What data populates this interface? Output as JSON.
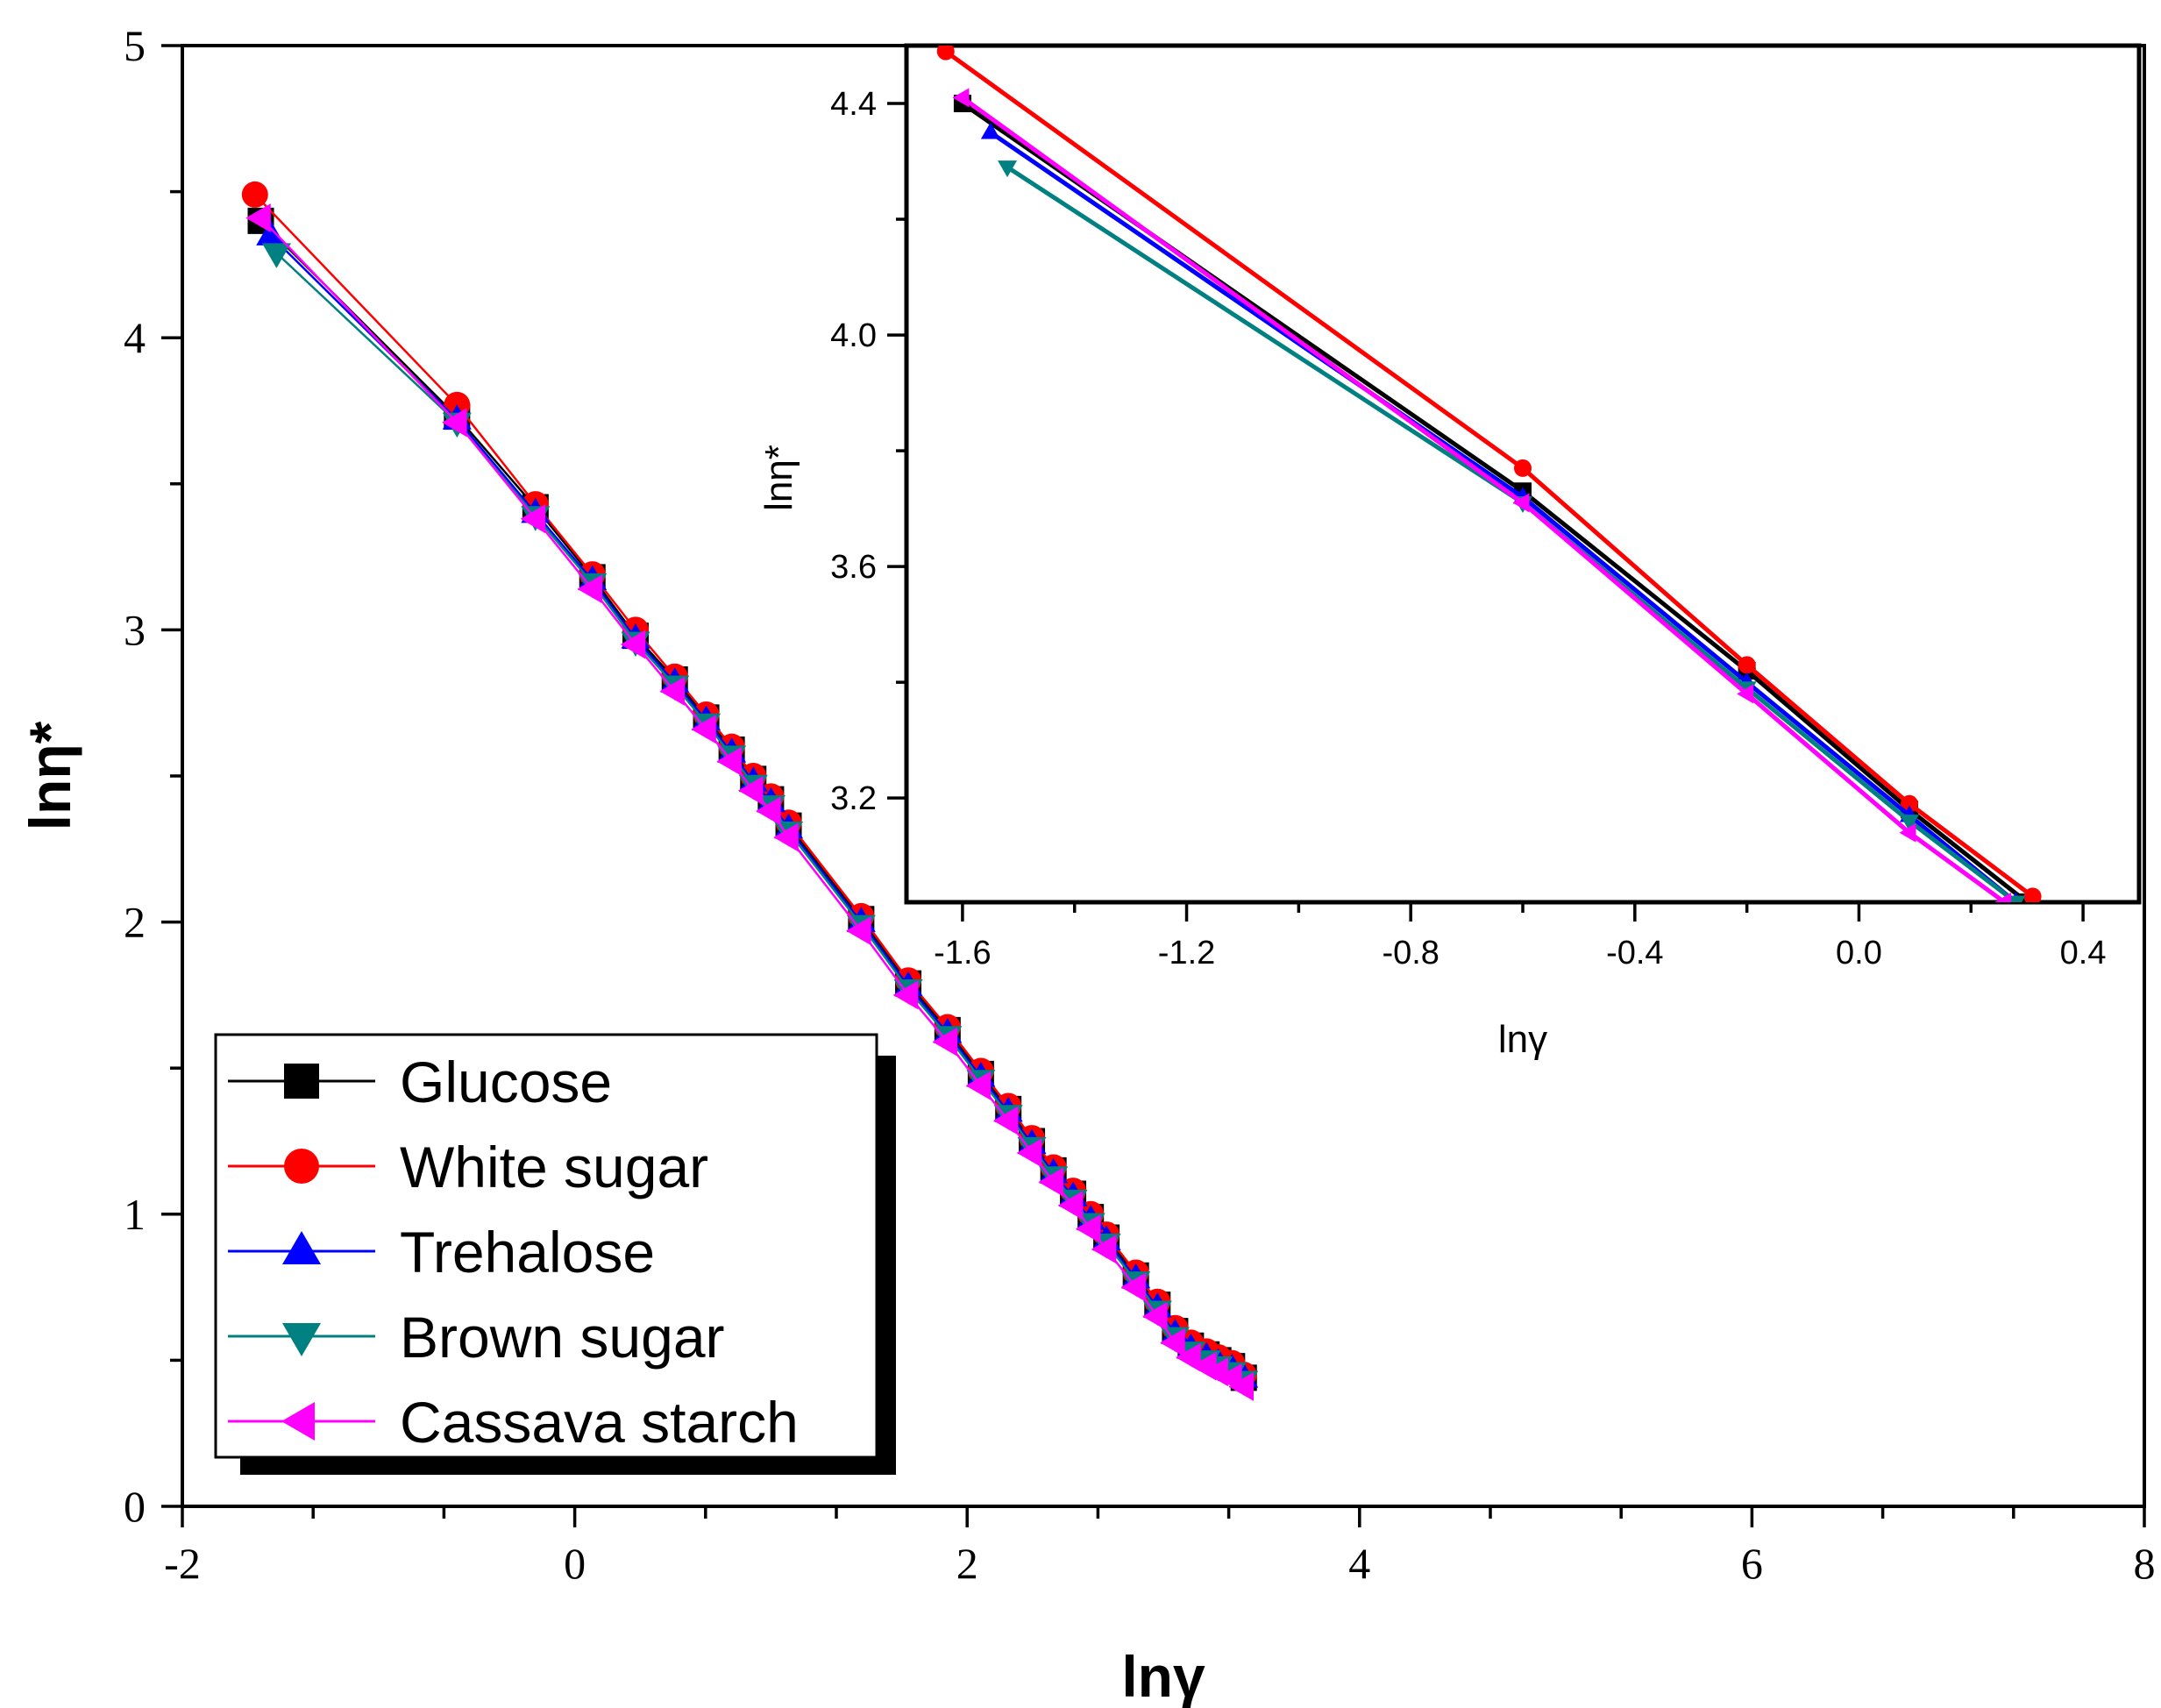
{
  "chart_data": [
    {
      "type": "line",
      "name": "main",
      "xlabel": "lnγ",
      "ylabel": "lnη*",
      "xlim": [
        -2,
        8
      ],
      "ylim": [
        0,
        5
      ],
      "xticks": [
        "-2",
        "0",
        "2",
        "4",
        "6",
        "8"
      ],
      "yticks": [
        "0",
        "1",
        "2",
        "3",
        "4",
        "5"
      ],
      "legend_position": "bottom-left",
      "series": [
        {
          "name": "Glucose",
          "color": "#000000",
          "marker": "square",
          "x": [
            -1.6,
            -0.6,
            -0.2,
            0.09,
            0.31,
            0.51,
            0.67,
            0.8,
            0.91,
            1.0,
            1.09,
            1.46,
            1.7,
            1.9,
            2.07,
            2.21,
            2.33,
            2.44,
            2.54,
            2.63,
            2.71,
            2.86,
            2.97,
            3.06,
            3.14,
            3.22,
            3.28,
            3.35,
            3.41
          ],
          "y": [
            4.4,
            3.73,
            3.42,
            3.18,
            2.98,
            2.83,
            2.7,
            2.59,
            2.49,
            2.42,
            2.33,
            2.01,
            1.79,
            1.63,
            1.48,
            1.36,
            1.25,
            1.15,
            1.07,
            0.99,
            0.92,
            0.79,
            0.69,
            0.6,
            0.55,
            0.52,
            0.5,
            0.48,
            0.44
          ]
        },
        {
          "name": "White sugar",
          "color": "#ff0000",
          "marker": "circle",
          "x": [
            -1.63,
            -0.6,
            -0.2,
            0.09,
            0.31,
            0.51,
            0.67,
            0.8,
            0.91,
            1.0,
            1.09,
            1.46,
            1.7,
            1.9,
            2.07,
            2.21,
            2.33,
            2.44,
            2.54,
            2.63,
            2.71,
            2.86,
            2.97,
            3.06,
            3.14,
            3.22,
            3.28,
            3.35,
            3.41
          ],
          "y": [
            4.49,
            3.77,
            3.43,
            3.19,
            3.0,
            2.84,
            2.71,
            2.6,
            2.5,
            2.43,
            2.34,
            2.02,
            1.8,
            1.64,
            1.49,
            1.37,
            1.26,
            1.16,
            1.08,
            1.0,
            0.93,
            0.8,
            0.7,
            0.61,
            0.56,
            0.53,
            0.51,
            0.49,
            0.45
          ]
        },
        {
          "name": "Trehalose",
          "color": "#0000ff",
          "marker": "triangle-up",
          "x": [
            -1.55,
            -0.6,
            -0.2,
            0.09,
            0.31,
            0.51,
            0.67,
            0.8,
            0.91,
            1.0,
            1.09,
            1.46,
            1.7,
            1.9,
            2.07,
            2.21,
            2.33,
            2.44,
            2.54,
            2.63,
            2.71,
            2.86,
            2.97,
            3.06,
            3.14,
            3.22,
            3.28,
            3.35,
            3.41
          ],
          "y": [
            4.35,
            3.72,
            3.4,
            3.17,
            2.97,
            2.82,
            2.69,
            2.58,
            2.48,
            2.41,
            2.32,
            2.0,
            1.78,
            1.62,
            1.47,
            1.35,
            1.24,
            1.14,
            1.06,
            0.98,
            0.91,
            0.78,
            0.68,
            0.59,
            0.54,
            0.51,
            0.49,
            0.47,
            0.44
          ]
        },
        {
          "name": "Brown sugar",
          "color": "#008080",
          "marker": "triangle-down",
          "x": [
            -1.52,
            -0.6,
            -0.2,
            0.09,
            0.31,
            0.51,
            0.67,
            0.8,
            0.91,
            1.0,
            1.09,
            1.46,
            1.7,
            1.9,
            2.07,
            2.21,
            2.33,
            2.44,
            2.54,
            2.63,
            2.71,
            2.86,
            2.97,
            3.06,
            3.14,
            3.22,
            3.28,
            3.35,
            3.41
          ],
          "y": [
            4.29,
            3.71,
            3.39,
            3.16,
            2.96,
            2.81,
            2.68,
            2.57,
            2.47,
            2.4,
            2.31,
            1.99,
            1.77,
            1.61,
            1.46,
            1.34,
            1.23,
            1.13,
            1.05,
            0.97,
            0.9,
            0.77,
            0.67,
            0.58,
            0.53,
            0.5,
            0.48,
            0.46,
            0.43
          ]
        },
        {
          "name": "Cassava starch",
          "color": "#ff00ff",
          "marker": "triangle-left",
          "x": [
            -1.6,
            -0.6,
            -0.2,
            0.09,
            0.31,
            0.51,
            0.67,
            0.8,
            0.91,
            1.0,
            1.09,
            1.46,
            1.7,
            1.9,
            2.07,
            2.21,
            2.33,
            2.44,
            2.54,
            2.63,
            2.71,
            2.86,
            2.97,
            3.06,
            3.14,
            3.22,
            3.28,
            3.35,
            3.41
          ],
          "y": [
            4.41,
            3.71,
            3.38,
            3.14,
            2.95,
            2.79,
            2.66,
            2.55,
            2.45,
            2.38,
            2.29,
            1.97,
            1.75,
            1.59,
            1.44,
            1.32,
            1.21,
            1.11,
            1.03,
            0.95,
            0.88,
            0.75,
            0.65,
            0.56,
            0.51,
            0.48,
            0.46,
            0.44,
            0.41
          ]
        }
      ]
    },
    {
      "type": "line",
      "name": "inset",
      "xlabel": "lnγ",
      "ylabel": "lnη*",
      "xlim": [
        -1.7,
        0.5
      ],
      "ylim": [
        3.02,
        4.5
      ],
      "xticks": [
        "-1.6",
        "-1.2",
        "-0.8",
        "-0.4",
        "0.0",
        "0.4"
      ],
      "yticks": [
        "3.2",
        "3.6",
        "4.0",
        "4.4"
      ],
      "series": [
        {
          "name": "Glucose",
          "color": "#000000",
          "marker": "square",
          "x": [
            -1.6,
            -0.6,
            -0.2,
            0.09,
            0.3
          ],
          "y": [
            4.4,
            3.73,
            3.42,
            3.18,
            3.02
          ]
        },
        {
          "name": "White sugar",
          "color": "#ff0000",
          "marker": "circle",
          "x": [
            -1.63,
            -0.6,
            -0.2,
            0.09,
            0.31
          ],
          "y": [
            4.49,
            3.77,
            3.43,
            3.19,
            3.03
          ]
        },
        {
          "name": "Trehalose",
          "color": "#0000ff",
          "marker": "triangle-up",
          "x": [
            -1.55,
            -0.6,
            -0.2,
            0.09,
            0.28
          ],
          "y": [
            4.35,
            3.72,
            3.4,
            3.17,
            3.02
          ]
        },
        {
          "name": "Brown sugar",
          "color": "#008080",
          "marker": "triangle-down",
          "x": [
            -1.52,
            -0.6,
            -0.2,
            0.09,
            0.28
          ],
          "y": [
            4.29,
            3.71,
            3.39,
            3.16,
            3.02
          ]
        },
        {
          "name": "Cassava starch",
          "color": "#ff00ff",
          "marker": "triangle-left",
          "x": [
            -1.6,
            -0.6,
            -0.2,
            0.09,
            0.26
          ],
          "y": [
            4.41,
            3.71,
            3.38,
            3.14,
            3.02
          ]
        }
      ]
    }
  ]
}
